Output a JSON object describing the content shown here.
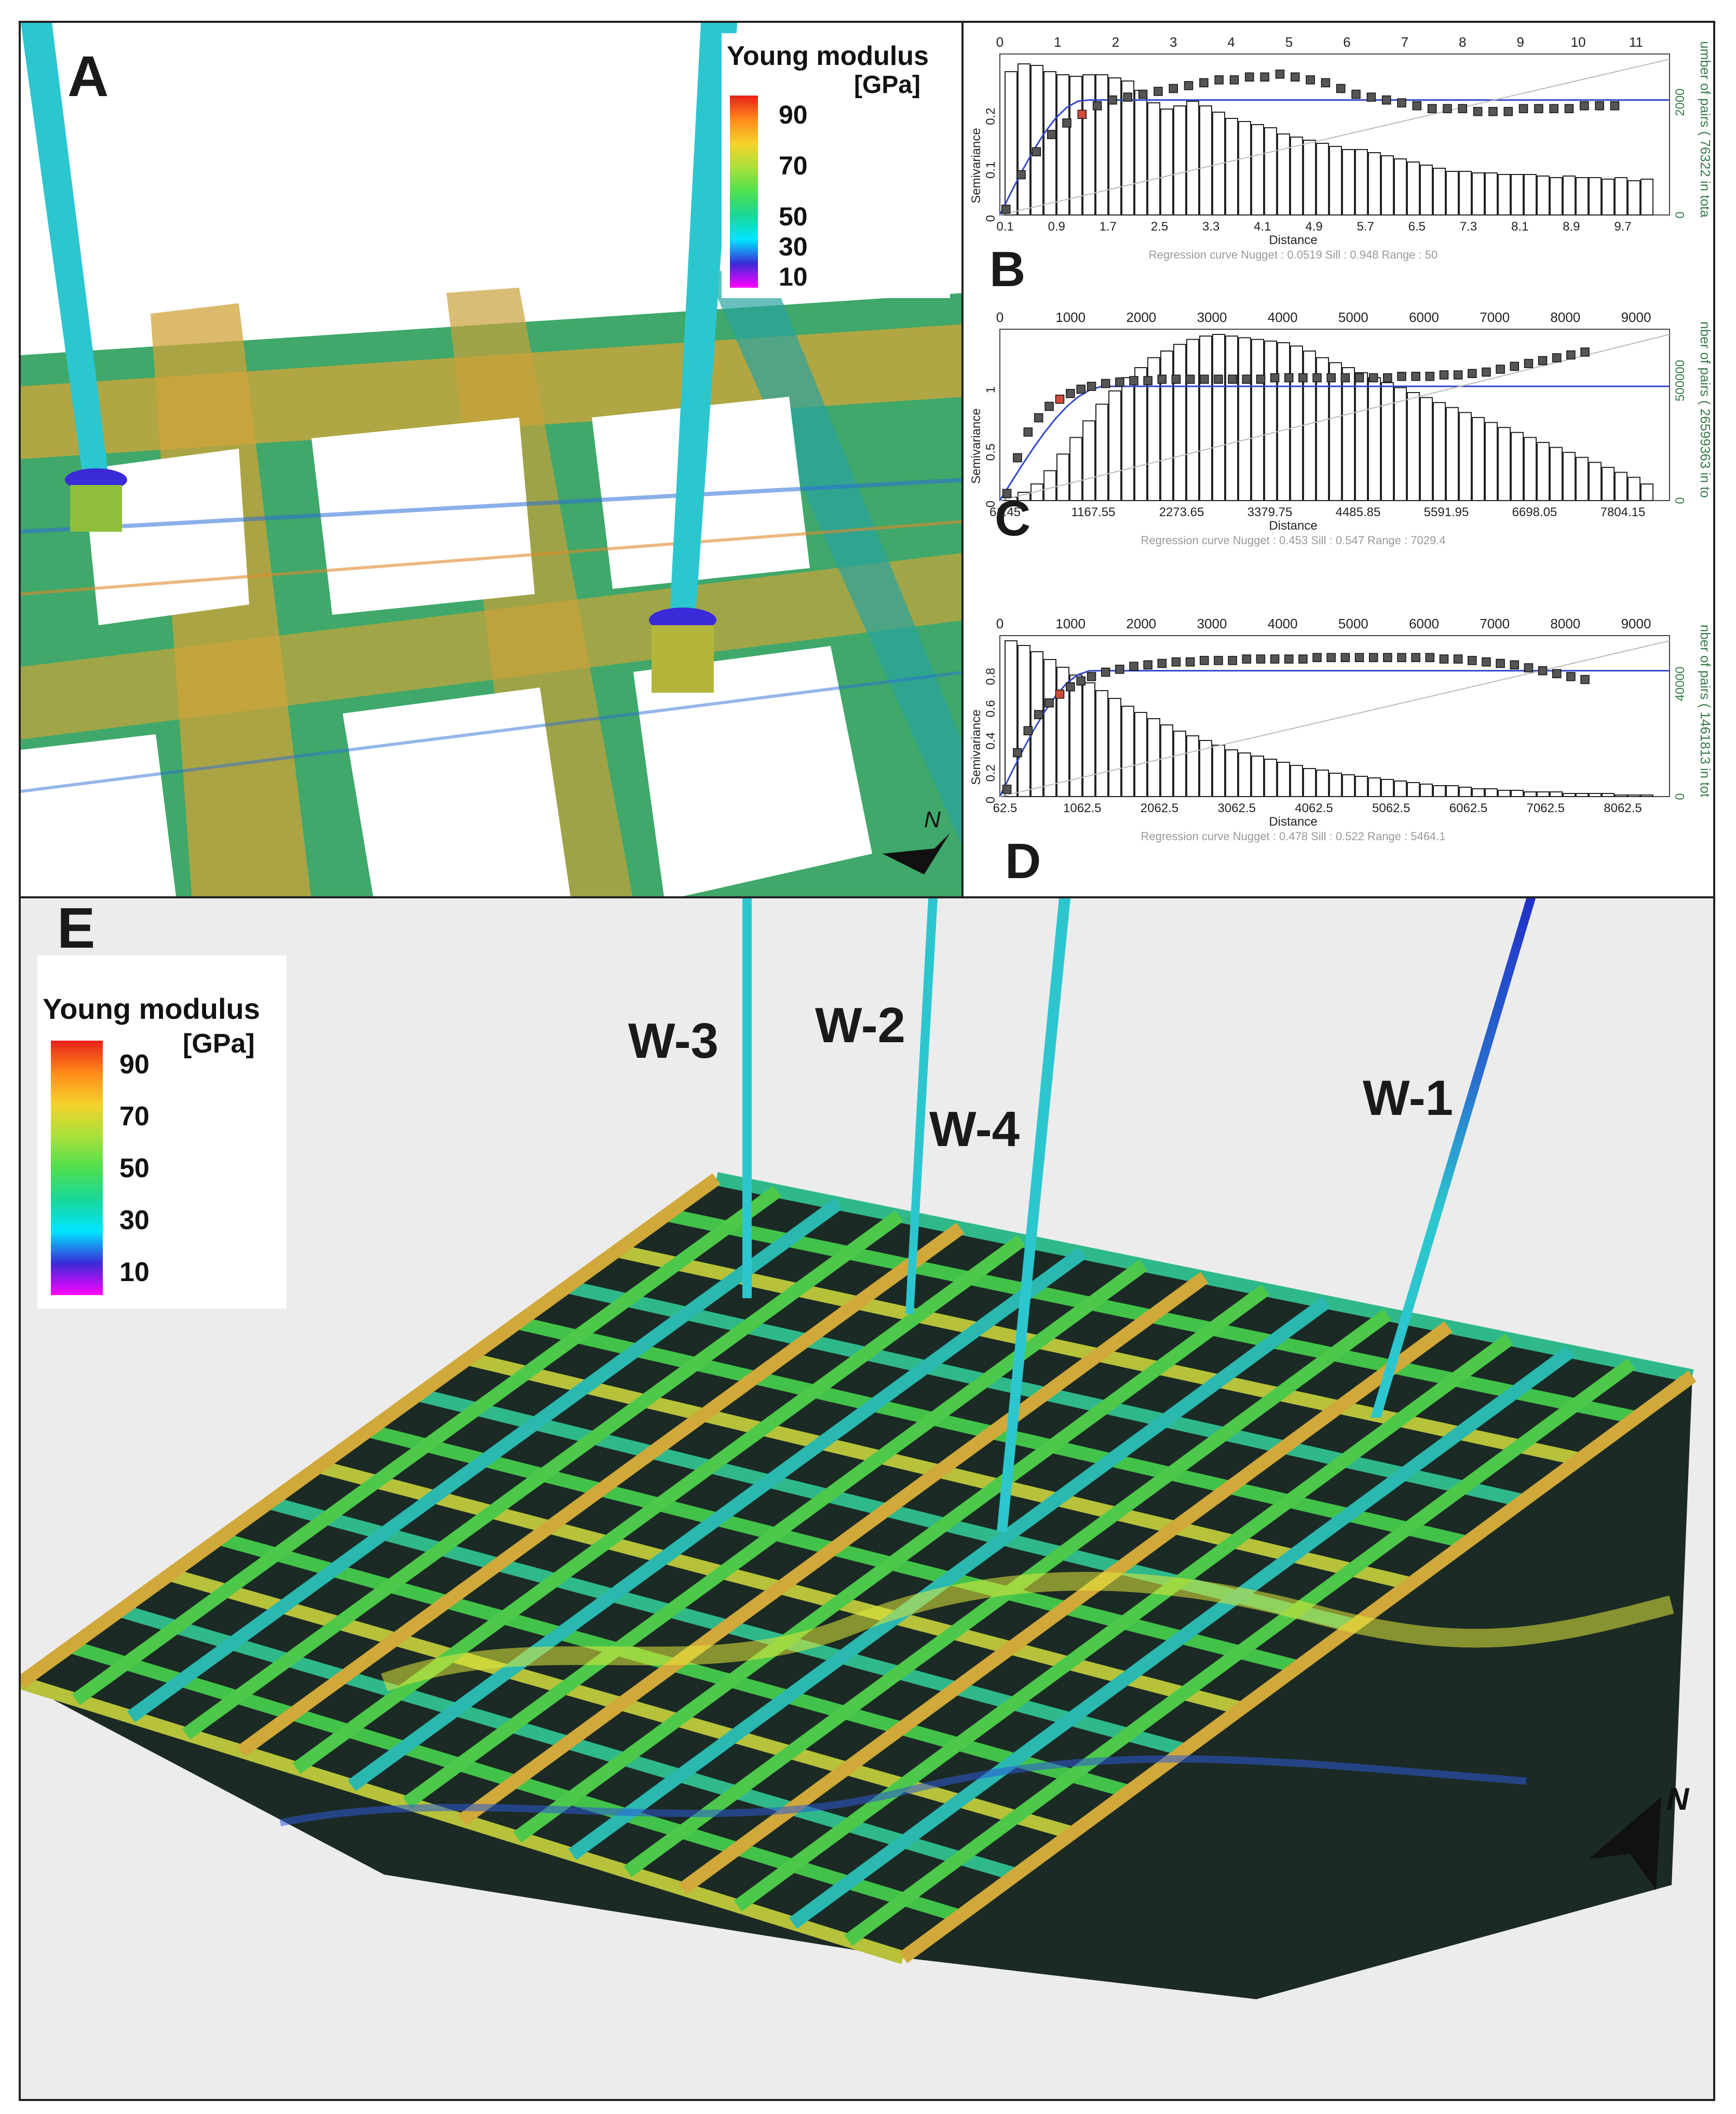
{
  "panels": {
    "a_label": "A",
    "b_label": "B",
    "c_label": "C",
    "d_label": "D",
    "e_label": "E"
  },
  "legend_a": {
    "title_line1": "Young modulus",
    "title_line2": "[GPa]",
    "ticks": [
      "90",
      "70",
      "50",
      "30",
      "10"
    ]
  },
  "legend_e": {
    "title_line1": "Young modulus",
    "title_line2": "[GPa]",
    "ticks": [
      "90",
      "70",
      "50",
      "30",
      "10"
    ]
  },
  "wells": {
    "w1": "W-1",
    "w2": "W-2",
    "w3": "W-3",
    "w4": "W-4"
  },
  "north": {
    "label": "N"
  },
  "colors": {
    "colorbar": [
      "#ff00ff",
      "#3a2bd8",
      "#00e5ff",
      "#19d89a",
      "#4fe04f",
      "#a9e03a",
      "#f5d22a",
      "#ff8a1a",
      "#e8201a"
    ],
    "grid_green": "#43c24a",
    "grid_orange": "#c9a13a",
    "grid_dark": "#1b2a24",
    "well_cyan": "#2cc6cf",
    "well_blue": "#2030c8",
    "semivariance_points": "#555555",
    "model_curve": "#3346c8",
    "panel_background": "#ececec"
  },
  "chart_data": [
    {
      "panel": "B",
      "type": "bar",
      "xlabel": "Distance",
      "ylabel": "Semivariance",
      "ylabel_right": "umber of pairs  ( 76322 in tota",
      "right_ticks": [
        "0",
        "2000"
      ],
      "top_ticks": [
        "0",
        "1",
        "2",
        "3",
        "4",
        "5",
        "6",
        "7",
        "8",
        "9",
        "10",
        "11"
      ],
      "bottom_ticks": [
        "0.1",
        "0.9",
        "1.7",
        "2.5",
        "3.3",
        "4.1",
        "4.9",
        "5.7",
        "6.5",
        "7.3",
        "8.1",
        "8.9",
        "9.7"
      ],
      "left_ticks": [
        "0",
        "0.1",
        "0.2"
      ],
      "x_range": [
        0,
        11
      ],
      "y_range": [
        0,
        0.28
      ],
      "footer": "Regression curve    Nugget : 0.0519    Sill : 0.948    Range : 50",
      "pair_bars": [
        0.92,
        0.97,
        0.96,
        0.92,
        0.9,
        0.89,
        0.9,
        0.9,
        0.88,
        0.86,
        0.8,
        0.72,
        0.68,
        0.7,
        0.73,
        0.7,
        0.66,
        0.62,
        0.6,
        0.58,
        0.56,
        0.52,
        0.5,
        0.48,
        0.46,
        0.44,
        0.42,
        0.42,
        0.4,
        0.38,
        0.36,
        0.34,
        0.32,
        0.3,
        0.28,
        0.28,
        0.27,
        0.27,
        0.26,
        0.26,
        0.26,
        0.25,
        0.24,
        0.25,
        0.24,
        0.24,
        0.23,
        0.24,
        0.22,
        0.23
      ],
      "semivariance_x": [
        0.1,
        0.35,
        0.6,
        0.85,
        1.1,
        1.35,
        1.6,
        1.85,
        2.1,
        2.35,
        2.6,
        2.85,
        3.1,
        3.35,
        3.6,
        3.85,
        4.1,
        4.35,
        4.6,
        4.85,
        5.1,
        5.35,
        5.6,
        5.85,
        6.1,
        6.35,
        6.6,
        6.85,
        7.1,
        7.35,
        7.6,
        7.85,
        8.1,
        8.35,
        8.6,
        8.85,
        9.1,
        9.35,
        9.6,
        9.85,
        10.1
      ],
      "semivariance_y": [
        0.01,
        0.07,
        0.11,
        0.14,
        0.16,
        0.175,
        0.19,
        0.2,
        0.205,
        0.21,
        0.215,
        0.22,
        0.225,
        0.23,
        0.235,
        0.235,
        0.24,
        0.24,
        0.245,
        0.24,
        0.235,
        0.23,
        0.22,
        0.21,
        0.205,
        0.2,
        0.195,
        0.19,
        0.185,
        0.185,
        0.185,
        0.18,
        0.18,
        0.18,
        0.185,
        0.185,
        0.185,
        0.185,
        0.19,
        0.19,
        0.19
      ],
      "model_sill": 0.2,
      "model_range": 1.4
    },
    {
      "panel": "C",
      "type": "bar",
      "xlabel": "Distance",
      "ylabel": "Semivariance",
      "ylabel_right": "nber of pairs  ( 26599363 in to",
      "right_ticks": [
        "0",
        "500000"
      ],
      "top_ticks": [
        "0",
        "1000",
        "2000",
        "3000",
        "4000",
        "5000",
        "6000",
        "7000",
        "8000",
        "9000"
      ],
      "bottom_ticks": [
        "61.45",
        "1167.55",
        "2273.65",
        "3379.75",
        "4485.85",
        "5591.95",
        "6698.05",
        "7804.15"
      ],
      "left_ticks": [
        "0",
        "0.5",
        "1"
      ],
      "x_range": [
        0,
        9500
      ],
      "y_range": [
        0,
        1.2
      ],
      "footer": "Regression curve    Nugget : 0.453    Sill : 0.547    Range : 7029.4",
      "pair_bars": [
        0.02,
        0.05,
        0.1,
        0.18,
        0.28,
        0.38,
        0.48,
        0.58,
        0.66,
        0.74,
        0.8,
        0.86,
        0.9,
        0.94,
        0.97,
        0.99,
        1.0,
        0.99,
        0.98,
        0.97,
        0.96,
        0.95,
        0.93,
        0.9,
        0.86,
        0.83,
        0.8,
        0.77,
        0.74,
        0.71,
        0.68,
        0.65,
        0.62,
        0.59,
        0.56,
        0.53,
        0.5,
        0.47,
        0.44,
        0.41,
        0.38,
        0.35,
        0.32,
        0.29,
        0.26,
        0.23,
        0.2,
        0.17,
        0.14,
        0.1
      ],
      "semivariance_x": [
        100,
        250,
        400,
        550,
        700,
        850,
        1000,
        1150,
        1300,
        1500,
        1700,
        1900,
        2100,
        2300,
        2500,
        2700,
        2900,
        3100,
        3300,
        3500,
        3700,
        3900,
        4100,
        4300,
        4500,
        4700,
        4900,
        5100,
        5300,
        5500,
        5700,
        5900,
        6100,
        6300,
        6500,
        6700,
        6900,
        7100,
        7300,
        7500,
        7700,
        7900,
        8100,
        8300
      ],
      "semivariance_y": [
        0.05,
        0.3,
        0.48,
        0.58,
        0.66,
        0.71,
        0.75,
        0.78,
        0.8,
        0.82,
        0.83,
        0.84,
        0.84,
        0.85,
        0.85,
        0.85,
        0.85,
        0.85,
        0.85,
        0.85,
        0.85,
        0.86,
        0.86,
        0.86,
        0.86,
        0.86,
        0.86,
        0.86,
        0.86,
        0.86,
        0.87,
        0.87,
        0.87,
        0.88,
        0.88,
        0.89,
        0.9,
        0.92,
        0.94,
        0.96,
        0.98,
        1.0,
        1.02,
        1.04
      ],
      "model_sill": 0.8,
      "model_range": 1500
    },
    {
      "panel": "D",
      "type": "bar",
      "xlabel": "Distance",
      "ylabel": "Semivariance",
      "ylabel_right": "nber of pairs  ( 1461813 in tot",
      "right_ticks": [
        "0",
        "40000"
      ],
      "top_ticks": [
        "0",
        "1000",
        "2000",
        "3000",
        "4000",
        "5000",
        "6000",
        "7000",
        "8000",
        "9000"
      ],
      "bottom_ticks": [
        "62.5",
        "1062.5",
        "2062.5",
        "3062.5",
        "4062.5",
        "5062.5",
        "6062.5",
        "7062.5",
        "8062.5"
      ],
      "left_ticks": [
        "0",
        "0.2",
        "0.4",
        "0.6",
        "0.8"
      ],
      "x_range": [
        0,
        9500
      ],
      "y_range": [
        0,
        1.1
      ],
      "footer": "Regression curve    Nugget : 0.478    Sill : 0.522    Range : 5464.1",
      "pair_bars": [
        1.0,
        0.97,
        0.93,
        0.88,
        0.83,
        0.78,
        0.73,
        0.68,
        0.63,
        0.58,
        0.54,
        0.5,
        0.46,
        0.42,
        0.39,
        0.36,
        0.33,
        0.3,
        0.28,
        0.26,
        0.24,
        0.22,
        0.2,
        0.18,
        0.17,
        0.15,
        0.14,
        0.13,
        0.12,
        0.11,
        0.1,
        0.09,
        0.08,
        0.07,
        0.07,
        0.06,
        0.05,
        0.05,
        0.04,
        0.04,
        0.03,
        0.03,
        0.03,
        0.02,
        0.02,
        0.02,
        0.02,
        0.01,
        0.01,
        0.01
      ],
      "semivariance_x": [
        100,
        250,
        400,
        550,
        700,
        850,
        1000,
        1150,
        1300,
        1500,
        1700,
        1900,
        2100,
        2300,
        2500,
        2700,
        2900,
        3100,
        3300,
        3500,
        3700,
        3900,
        4100,
        4300,
        4500,
        4700,
        4900,
        5100,
        5300,
        5500,
        5700,
        5900,
        6100,
        6300,
        6500,
        6700,
        6900,
        7100,
        7300,
        7500,
        7700,
        7900,
        8100,
        8300
      ],
      "semivariance_y": [
        0.05,
        0.3,
        0.45,
        0.56,
        0.64,
        0.7,
        0.75,
        0.79,
        0.82,
        0.85,
        0.87,
        0.89,
        0.9,
        0.91,
        0.92,
        0.92,
        0.93,
        0.93,
        0.93,
        0.94,
        0.94,
        0.94,
        0.94,
        0.94,
        0.95,
        0.95,
        0.95,
        0.95,
        0.95,
        0.95,
        0.95,
        0.95,
        0.95,
        0.94,
        0.94,
        0.93,
        0.92,
        0.91,
        0.9,
        0.88,
        0.86,
        0.84,
        0.82,
        0.8
      ],
      "model_sill": 0.86,
      "model_range": 1300
    }
  ]
}
